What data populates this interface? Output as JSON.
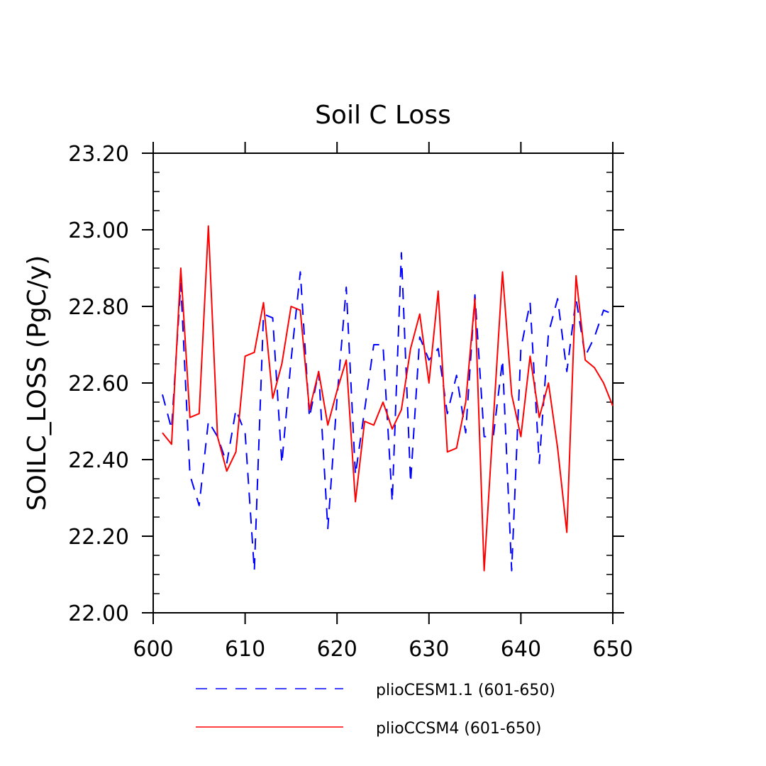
{
  "chart_data": {
    "type": "line",
    "title": "Soil C Loss",
    "xlabel": "",
    "ylabel": "SOILC_LOSS  (PgC/y)",
    "xlim": [
      600,
      650
    ],
    "ylim": [
      22.0,
      23.2
    ],
    "x_ticks": [
      600,
      610,
      620,
      630,
      640,
      650
    ],
    "x_tick_labels": [
      "600",
      "610",
      "620",
      "630",
      "640",
      "650"
    ],
    "y_ticks": [
      22.0,
      22.2,
      22.4,
      22.6,
      22.8,
      23.0,
      23.2
    ],
    "y_tick_labels": [
      "22.00",
      "22.20",
      "22.40",
      "22.60",
      "22.80",
      "23.00",
      "23.20"
    ],
    "grid": false,
    "legend_position": "bottom",
    "series": [
      {
        "name": "plioCESM1.1 (601-650)",
        "color": "#0000ff",
        "dash": "dashed",
        "x": [
          601,
          602,
          603,
          604,
          605,
          606,
          607,
          608,
          609,
          610,
          611,
          612,
          613,
          614,
          615,
          616,
          617,
          618,
          619,
          620,
          621,
          622,
          623,
          624,
          625,
          626,
          627,
          628,
          629,
          630,
          631,
          632,
          633,
          634,
          635,
          636,
          637,
          638,
          639,
          640,
          641,
          642,
          643,
          644,
          645,
          646,
          647,
          648,
          649,
          650
        ],
        "values": [
          22.57,
          22.48,
          22.86,
          22.36,
          22.28,
          22.5,
          22.46,
          22.39,
          22.53,
          22.47,
          22.11,
          22.78,
          22.77,
          22.39,
          22.66,
          22.89,
          22.51,
          22.63,
          22.22,
          22.56,
          22.85,
          22.36,
          22.53,
          22.7,
          22.7,
          22.29,
          22.94,
          22.34,
          22.72,
          22.66,
          22.69,
          22.52,
          22.62,
          22.47,
          22.83,
          22.46,
          22.46,
          22.66,
          22.11,
          22.69,
          22.81,
          22.39,
          22.73,
          22.82,
          22.63,
          22.82,
          22.67,
          22.72,
          22.79,
          22.78
        ]
      },
      {
        "name": "plioCCSM4 (601-650)",
        "color": "#ff0000",
        "dash": "solid",
        "x": [
          601,
          602,
          603,
          604,
          605,
          606,
          607,
          608,
          609,
          610,
          611,
          612,
          613,
          614,
          615,
          616,
          617,
          618,
          619,
          620,
          621,
          622,
          623,
          624,
          625,
          626,
          627,
          628,
          629,
          630,
          631,
          632,
          633,
          634,
          635,
          636,
          637,
          638,
          639,
          640,
          641,
          642,
          643,
          644,
          645,
          646,
          647,
          648,
          649,
          650
        ],
        "values": [
          22.47,
          22.44,
          22.9,
          22.51,
          22.52,
          23.01,
          22.46,
          22.37,
          22.42,
          22.67,
          22.68,
          22.81,
          22.56,
          22.65,
          22.8,
          22.79,
          22.53,
          22.63,
          22.49,
          22.58,
          22.66,
          22.29,
          22.5,
          22.49,
          22.55,
          22.48,
          22.53,
          22.69,
          22.78,
          22.6,
          22.84,
          22.42,
          22.43,
          22.55,
          22.82,
          22.11,
          22.5,
          22.89,
          22.57,
          22.46,
          22.67,
          22.51,
          22.6,
          22.43,
          22.21,
          22.88,
          22.66,
          22.64,
          22.6,
          22.54
        ]
      }
    ]
  }
}
